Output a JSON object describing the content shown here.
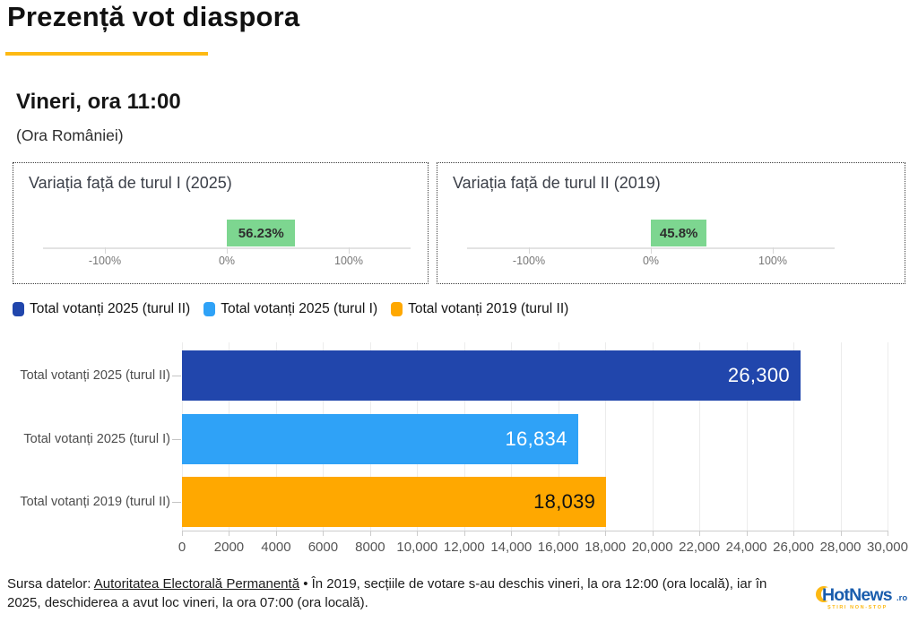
{
  "page": {
    "title": "Prezență vot diaspora",
    "subtitle": "Vineri, ora 11:00",
    "subtitle_note": "(Ora României)",
    "accent_color": "#FDB913"
  },
  "chart_data": [
    {
      "type": "bar",
      "title": "Variația față de turul I (2025)",
      "categories": [
        "Variația față de turul I (2025)"
      ],
      "values": [
        56.23
      ],
      "value_labels": [
        "56.23%"
      ],
      "bar_color": "#7DD690",
      "xlim": [
        -100,
        100
      ],
      "x_ticks": [
        "-100%",
        "0%",
        "100%"
      ],
      "grid": false
    },
    {
      "type": "bar",
      "title": "Variația față de turul II (2019)",
      "categories": [
        "Variația față de turul II (2019)"
      ],
      "values": [
        45.8
      ],
      "value_labels": [
        "45.8%"
      ],
      "bar_color": "#7DD690",
      "xlim": [
        -100,
        100
      ],
      "x_ticks": [
        "-100%",
        "0%",
        "100%"
      ],
      "grid": false
    },
    {
      "type": "bar",
      "orientation": "horizontal",
      "categories": [
        "Total votanți 2025 (turul II)",
        "Total votanți 2025 (turul I)",
        "Total votanți 2019 (turul II)"
      ],
      "values": [
        26300,
        16834,
        18039
      ],
      "value_labels": [
        "26,300",
        "16,834",
        "18,039"
      ],
      "value_label_colors": [
        "#ffffff",
        "#ffffff",
        "#111111"
      ],
      "bar_colors": [
        "#2146AC",
        "#2FA2F7",
        "#FFA800"
      ],
      "xlim": [
        0,
        30000
      ],
      "x_ticks": [
        "0",
        "2000",
        "4000",
        "6000",
        "8000",
        "10,000",
        "12,000",
        "14,000",
        "16,000",
        "18,000",
        "20,000",
        "22,000",
        "24,000",
        "26,000",
        "28,000",
        "30,000"
      ],
      "grid": true,
      "legend_position": "top"
    }
  ],
  "legend": [
    {
      "label": "Total votanți 2025 (turul II)",
      "color": "#2146AC"
    },
    {
      "label": "Total votanți 2025 (turul I)",
      "color": "#2FA2F7"
    },
    {
      "label": "Total votanți 2019 (turul II)",
      "color": "#FFA800"
    }
  ],
  "footer": {
    "source_prefix": "Sursa datelor: ",
    "source_link": "Autoritatea Electorală Permanentă",
    "source_suffix": " • În 2019, secțiile de votare s-au deschis vineri, la ora 12:00 (ora locală), iar în 2025, deschiderea a avut loc vineri, la ora 07:00 (ora locală).",
    "logo": {
      "text": "HotNews",
      "tld": ".ro",
      "tagline": "ȘTIRI NON-STOP",
      "blue": "#1A5DAD",
      "yellow": "#FDB913"
    }
  }
}
